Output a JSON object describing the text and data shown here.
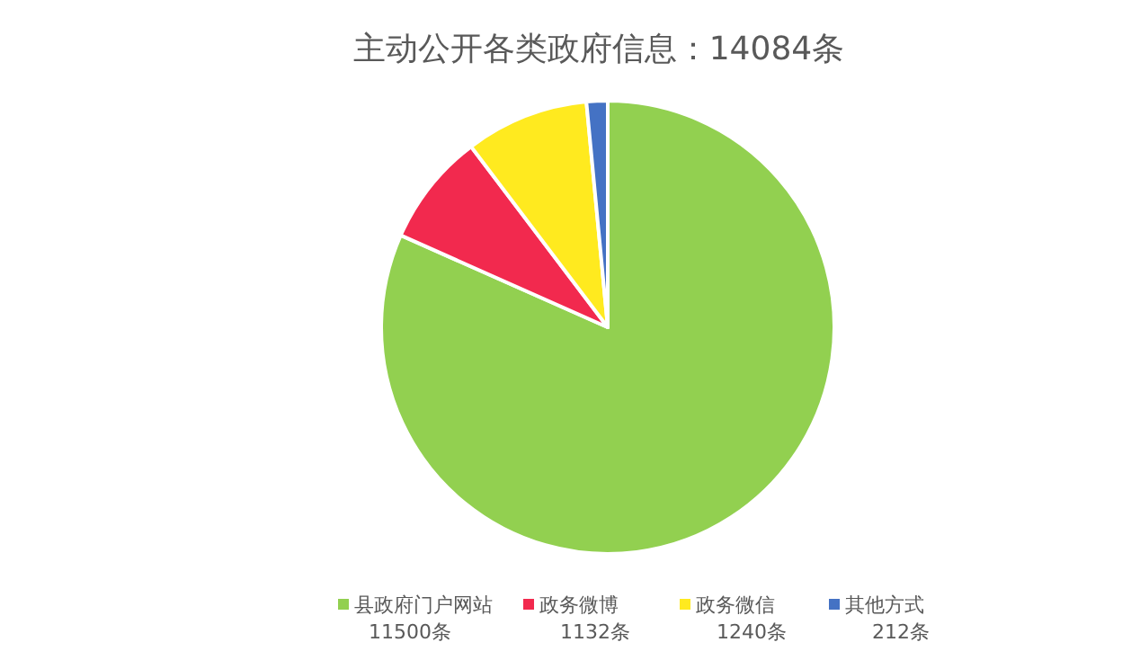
{
  "chart_data": {
    "type": "pie",
    "title": "主动公开各类政府信息：14084条",
    "categories": [
      "县政府门户网站",
      "政务微博",
      "政务微信",
      "其他方式"
    ],
    "values": [
      11500,
      1132,
      1240,
      212
    ],
    "value_labels": [
      "11500条",
      "1132条",
      "1240条",
      "212条"
    ],
    "colors": [
      "#92d050",
      "#f2294e",
      "#ffea1f",
      "#4472c4"
    ],
    "legend": "bottom"
  }
}
